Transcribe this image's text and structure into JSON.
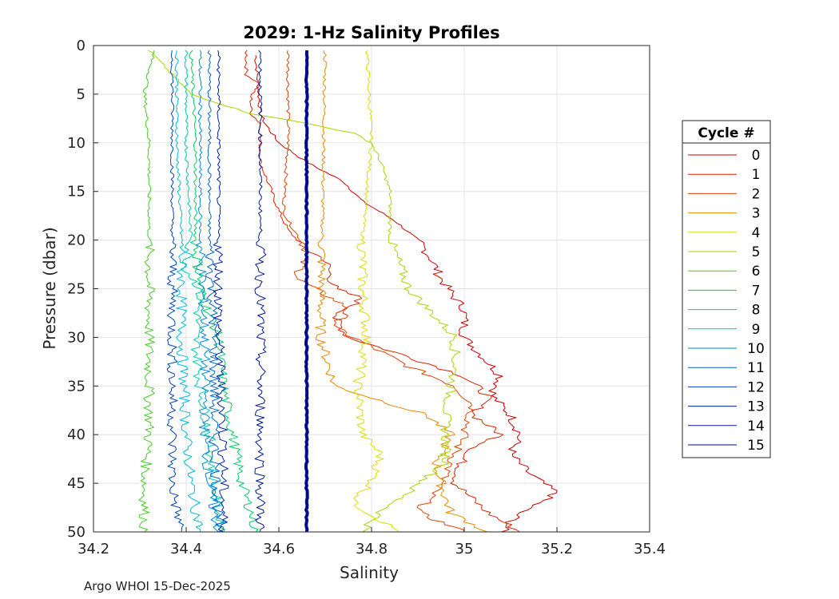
{
  "chart_data": {
    "type": "line",
    "title": "2029: 1-Hz Salinity Profiles",
    "xlabel": "Salinity",
    "ylabel": "Pressure (dbar)",
    "xlim": [
      34.2,
      35.4
    ],
    "ylim": [
      0,
      50
    ],
    "y_reversed": true,
    "grid": true,
    "x_ticks": [
      34.2,
      34.4,
      34.6,
      34.8,
      35,
      35.2,
      35.4
    ],
    "x_tick_labels": [
      "34.2",
      "34.4",
      "34.6",
      "34.8",
      "35",
      "35.2",
      "35.4"
    ],
    "y_ticks": [
      0,
      5,
      10,
      15,
      20,
      25,
      30,
      35,
      40,
      45,
      50
    ],
    "y_tick_labels": [
      "0",
      "5",
      "10",
      "15",
      "20",
      "25",
      "30",
      "35",
      "40",
      "45",
      "50"
    ],
    "legend_title": "Cycle #",
    "legend_position": "right",
    "series": [
      {
        "name": "0",
        "color": "#cc0000",
        "pressure": [
          1,
          7,
          8,
          10,
          12,
          14,
          16,
          18,
          20,
          22,
          24,
          26,
          27,
          28,
          30,
          32,
          34,
          36,
          38,
          40,
          42,
          44,
          46,
          48,
          50
        ],
        "salinity": [
          34.55,
          34.56,
          34.57,
          34.6,
          34.66,
          34.74,
          34.78,
          34.85,
          34.9,
          34.93,
          34.95,
          34.98,
          35.0,
          35.0,
          35.0,
          35.04,
          35.08,
          35.06,
          35.1,
          35.12,
          35.1,
          35.14,
          35.2,
          35.12,
          35.08
        ]
      },
      {
        "name": "1",
        "color": "#dd2200",
        "pressure": [
          0.5,
          3,
          4,
          5,
          6,
          7,
          8,
          12,
          17,
          19,
          21,
          22,
          25,
          26,
          28,
          30,
          32,
          34,
          36,
          38,
          40,
          42,
          45,
          48,
          50
        ],
        "salinity": [
          34.53,
          34.53,
          34.56,
          34.54,
          34.54,
          34.54,
          34.56,
          34.56,
          34.6,
          34.62,
          34.66,
          34.7,
          34.72,
          34.78,
          34.72,
          34.75,
          34.88,
          35.0,
          35.05,
          35.02,
          35.08,
          35.0,
          34.98,
          35.05,
          35.12
        ]
      },
      {
        "name": "2",
        "color": "#e04400",
        "pressure": [
          0.5,
          10,
          17,
          18,
          21,
          24,
          27,
          29,
          31,
          33,
          35,
          37,
          40,
          45,
          48,
          50
        ],
        "salinity": [
          34.62,
          34.62,
          34.61,
          34.62,
          34.66,
          34.64,
          34.75,
          34.72,
          34.8,
          34.88,
          34.98,
          35.02,
          35.0,
          34.95,
          34.9,
          35.0
        ]
      },
      {
        "name": "3",
        "color": "#e88800",
        "pressure": [
          0.5,
          30,
          35,
          38,
          40,
          43,
          45,
          48,
          50
        ],
        "salinity": [
          34.7,
          34.69,
          34.72,
          34.92,
          34.97,
          34.94,
          34.95,
          34.97,
          35.05
        ]
      },
      {
        "name": "4",
        "color": "#dddd00",
        "pressure": [
          0.5,
          10,
          15,
          20,
          25,
          30,
          35,
          40,
          42,
          45,
          47,
          50
        ],
        "salinity": [
          34.79,
          34.8,
          34.79,
          34.78,
          34.78,
          34.79,
          34.77,
          34.78,
          34.82,
          34.8,
          34.76,
          34.86
        ]
      },
      {
        "name": "5",
        "color": "#a6d600",
        "pressure": [
          0.5,
          5,
          7,
          8,
          9,
          10,
          12,
          15,
          20,
          25,
          27,
          30,
          33,
          38,
          43,
          48,
          50
        ],
        "salinity": [
          34.32,
          34.41,
          34.54,
          34.66,
          34.76,
          34.8,
          34.82,
          34.84,
          34.84,
          34.88,
          34.92,
          34.98,
          34.98,
          34.96,
          34.96,
          34.82,
          34.78
        ]
      },
      {
        "name": "6",
        "color": "#44cc22",
        "pressure": [
          0.5,
          5,
          10,
          20,
          30,
          40,
          45,
          48,
          50
        ],
        "salinity": [
          34.33,
          34.31,
          34.32,
          34.32,
          34.32,
          34.32,
          34.31,
          34.31,
          34.31
        ]
      },
      {
        "name": "7",
        "color": "#00cc66",
        "pressure": [
          0.5,
          10,
          20,
          25,
          30,
          35,
          40,
          45,
          48,
          50
        ],
        "salinity": [
          34.41,
          34.42,
          34.42,
          34.43,
          34.47,
          34.48,
          34.5,
          34.52,
          34.54,
          34.55
        ]
      },
      {
        "name": "8",
        "color": "#00ccaa",
        "pressure": [
          0.5,
          10,
          20,
          23,
          25,
          30,
          35,
          40,
          45,
          48,
          50
        ],
        "salinity": [
          34.4,
          34.4,
          34.41,
          34.4,
          34.43,
          34.42,
          34.43,
          34.45,
          34.46,
          34.47,
          34.48
        ]
      },
      {
        "name": "9",
        "color": "#00bbdd",
        "pressure": [
          0.5,
          10,
          20,
          30,
          40,
          45,
          50
        ],
        "salinity": [
          34.38,
          34.38,
          34.39,
          34.39,
          34.4,
          34.41,
          34.43
        ]
      },
      {
        "name": "10",
        "color": "#0088dd",
        "pressure": [
          0.5,
          10,
          20,
          30,
          40,
          45,
          48,
          50
        ],
        "salinity": [
          34.43,
          34.43,
          34.43,
          34.44,
          34.44,
          34.45,
          34.46,
          34.47
        ]
      },
      {
        "name": "11",
        "color": "#0066cc",
        "pressure": [
          0.5,
          10,
          20,
          30,
          40,
          50
        ],
        "salinity": [
          34.45,
          34.45,
          34.45,
          34.46,
          34.46,
          34.47
        ]
      },
      {
        "name": "12",
        "color": "#0044bb",
        "pressure": [
          0.5,
          10,
          20,
          30,
          40,
          45,
          48,
          50
        ],
        "salinity": [
          34.37,
          34.37,
          34.37,
          34.37,
          34.37,
          34.37,
          34.38,
          34.39
        ]
      },
      {
        "name": "13",
        "color": "#0022aa",
        "pressure": [
          0.5,
          10,
          20,
          30,
          40,
          50
        ],
        "salinity": [
          34.47,
          34.47,
          34.47,
          34.47,
          34.48,
          34.48
        ]
      },
      {
        "name": "14",
        "color": "#001899",
        "pressure": [
          0.5,
          10,
          20,
          30,
          40,
          50
        ],
        "salinity": [
          34.56,
          34.56,
          34.56,
          34.56,
          34.56,
          34.56
        ]
      },
      {
        "name": "15",
        "color": "#000b8c",
        "pressure": [
          0.5,
          10,
          20,
          30,
          40,
          50
        ],
        "salinity": [
          34.66,
          34.66,
          34.66,
          34.66,
          34.66,
          34.66
        ],
        "bold": true
      }
    ]
  },
  "footer": "Argo WHOI 15-Dec-2025"
}
